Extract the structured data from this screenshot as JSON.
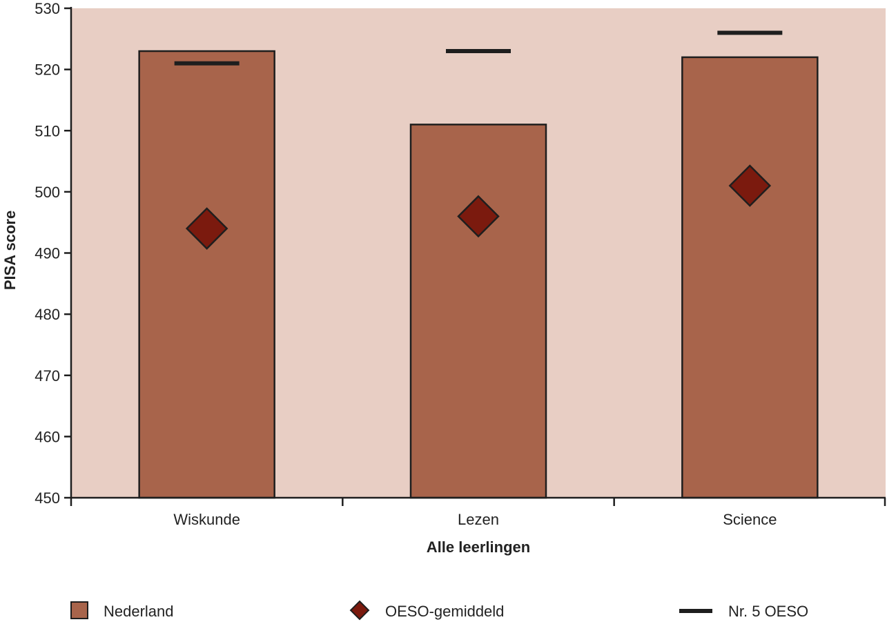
{
  "chart_data": {
    "type": "bar",
    "title": "",
    "xlabel": "Alle leerlingen",
    "ylabel": "PISA score",
    "ylim": [
      450,
      530
    ],
    "yticks": [
      450,
      460,
      470,
      480,
      490,
      500,
      510,
      520,
      530
    ],
    "categories": [
      "Wiskunde",
      "Lezen",
      "Science"
    ],
    "series": [
      {
        "name": "Nederland",
        "kind": "bar",
        "values": [
          523,
          511,
          522
        ]
      },
      {
        "name": "OESO-gemiddeld",
        "kind": "diamond-marker",
        "values": [
          494,
          496,
          501
        ]
      },
      {
        "name": "Nr. 5 OESO",
        "kind": "dash-marker",
        "values": [
          521,
          523,
          526
        ]
      }
    ],
    "grid": false,
    "legend_position": "bottom",
    "colors": {
      "plot_background": "#e8cec4",
      "bar_fill": "#a8644b",
      "bar_stroke": "#1e1e1e",
      "diamond_fill": "#7b1a0e",
      "dash_color": "#1e1e1e",
      "axis_color": "#1e1e1e"
    }
  }
}
